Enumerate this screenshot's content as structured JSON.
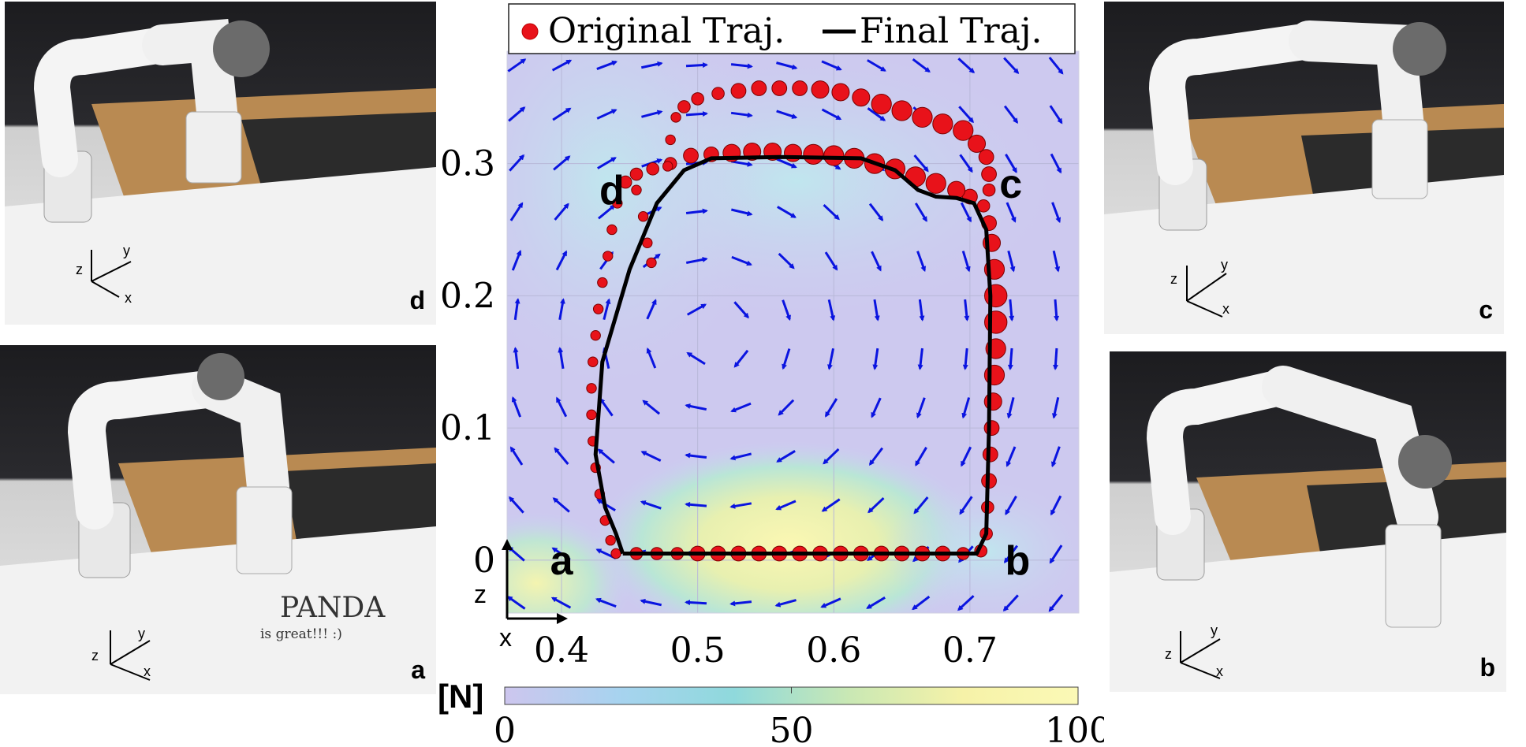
{
  "panels": [
    {
      "id": "d",
      "label": "d"
    },
    {
      "id": "a",
      "label": "a",
      "writing": "PANDA",
      "writing2": "is great!!! :)"
    },
    {
      "id": "c",
      "label": "c"
    },
    {
      "id": "b",
      "label": "b"
    }
  ],
  "axes_triad": {
    "x": "x",
    "y": "y",
    "z": "z"
  },
  "chart_data": {
    "type": "scatter",
    "xlim": [
      0.36,
      0.78
    ],
    "ylim": [
      -0.04,
      0.385
    ],
    "xticks": [
      {
        "value": 0.4,
        "label": "0.4"
      },
      {
        "value": 0.5,
        "label": "0.5"
      },
      {
        "value": 0.6,
        "label": "0.6"
      },
      {
        "value": 0.7,
        "label": "0.7"
      }
    ],
    "yticks": [
      {
        "value": 0.0,
        "label": "0"
      },
      {
        "value": 0.1,
        "label": "0.1"
      },
      {
        "value": 0.2,
        "label": "0.2"
      },
      {
        "value": 0.3,
        "label": "0.3"
      }
    ],
    "grid": true,
    "legend": {
      "position": "top",
      "entries": [
        {
          "label": "Original Traj.",
          "marker": "circle",
          "color": "#e8121a"
        },
        {
          "label": "Final Traj.",
          "marker": "line",
          "color": "#000000"
        }
      ]
    },
    "axis_indicator": {
      "vertical": "z",
      "horizontal": "x"
    },
    "point_labels": [
      {
        "text": "a",
        "x": 0.4,
        "y": 0.0
      },
      {
        "text": "b",
        "x": 0.735,
        "y": 0.0
      },
      {
        "text": "c",
        "x": 0.73,
        "y": 0.285
      },
      {
        "text": "d",
        "x": 0.437,
        "y": 0.28
      }
    ],
    "colorbar": {
      "label": "[N]",
      "min": 0,
      "max": 100,
      "ticks": [
        {
          "value": 0,
          "label": "0"
        },
        {
          "value": 50,
          "label": "50"
        },
        {
          "value": 100,
          "label": "100"
        }
      ],
      "colors": [
        "#cdc6ee",
        "#a7d3ef",
        "#8fd9dc",
        "#c9e8b4",
        "#f6f2a8",
        "#fbf9b6"
      ]
    },
    "field_color": "#0a14e0",
    "series": [
      {
        "name": "Original Traj.",
        "style": "points",
        "color": "#e8121a",
        "points": [
          [
            0.44,
            0.005,
            2
          ],
          [
            0.455,
            0.005,
            3
          ],
          [
            0.47,
            0.005,
            3
          ],
          [
            0.485,
            0.005,
            3
          ],
          [
            0.5,
            0.005,
            4
          ],
          [
            0.515,
            0.005,
            4
          ],
          [
            0.53,
            0.005,
            4
          ],
          [
            0.545,
            0.005,
            4
          ],
          [
            0.56,
            0.005,
            4
          ],
          [
            0.575,
            0.005,
            4
          ],
          [
            0.59,
            0.005,
            4
          ],
          [
            0.605,
            0.005,
            4
          ],
          [
            0.62,
            0.005,
            4
          ],
          [
            0.635,
            0.005,
            4
          ],
          [
            0.65,
            0.005,
            4
          ],
          [
            0.665,
            0.005,
            4
          ],
          [
            0.68,
            0.005,
            4
          ],
          [
            0.695,
            0.005,
            3
          ],
          [
            0.708,
            0.007,
            3
          ],
          [
            0.712,
            0.02,
            3
          ],
          [
            0.713,
            0.04,
            3
          ],
          [
            0.714,
            0.06,
            4
          ],
          [
            0.715,
            0.08,
            4
          ],
          [
            0.716,
            0.1,
            4
          ],
          [
            0.717,
            0.12,
            5
          ],
          [
            0.718,
            0.14,
            6
          ],
          [
            0.719,
            0.16,
            6
          ],
          [
            0.719,
            0.18,
            7
          ],
          [
            0.719,
            0.2,
            7
          ],
          [
            0.718,
            0.22,
            6
          ],
          [
            0.716,
            0.24,
            5
          ],
          [
            0.714,
            0.255,
            4
          ],
          [
            0.71,
            0.268,
            3
          ],
          [
            0.7,
            0.275,
            4
          ],
          [
            0.69,
            0.28,
            5
          ],
          [
            0.675,
            0.285,
            6
          ],
          [
            0.66,
            0.29,
            6
          ],
          [
            0.645,
            0.296,
            6
          ],
          [
            0.63,
            0.3,
            6
          ],
          [
            0.615,
            0.304,
            6
          ],
          [
            0.6,
            0.306,
            6
          ],
          [
            0.585,
            0.307,
            6
          ],
          [
            0.57,
            0.308,
            5
          ],
          [
            0.555,
            0.309,
            5
          ],
          [
            0.54,
            0.309,
            5
          ],
          [
            0.525,
            0.308,
            5
          ],
          [
            0.51,
            0.307,
            4
          ],
          [
            0.495,
            0.306,
            4
          ],
          [
            0.48,
            0.3,
            3
          ],
          [
            0.467,
            0.296,
            3
          ],
          [
            0.455,
            0.292,
            3
          ],
          [
            0.447,
            0.286,
            3
          ],
          [
            0.441,
            0.27,
            2
          ],
          [
            0.437,
            0.25,
            2
          ],
          [
            0.434,
            0.23,
            2
          ],
          [
            0.43,
            0.21,
            2
          ],
          [
            0.427,
            0.19,
            2
          ],
          [
            0.425,
            0.17,
            2
          ],
          [
            0.423,
            0.15,
            2
          ],
          [
            0.422,
            0.13,
            2
          ],
          [
            0.422,
            0.11,
            2
          ],
          [
            0.423,
            0.09,
            2
          ],
          [
            0.425,
            0.07,
            2
          ],
          [
            0.428,
            0.05,
            2
          ],
          [
            0.432,
            0.03,
            2
          ],
          [
            0.436,
            0.015,
            2
          ],
          [
            0.478,
            0.298,
            2
          ],
          [
            0.48,
            0.318,
            2
          ],
          [
            0.484,
            0.335,
            2
          ],
          [
            0.49,
            0.343,
            3
          ],
          [
            0.5,
            0.349,
            3
          ],
          [
            0.515,
            0.353,
            3
          ],
          [
            0.53,
            0.355,
            4
          ],
          [
            0.545,
            0.357,
            4
          ],
          [
            0.56,
            0.357,
            4
          ],
          [
            0.575,
            0.357,
            4
          ],
          [
            0.59,
            0.356,
            5
          ],
          [
            0.605,
            0.354,
            5
          ],
          [
            0.62,
            0.35,
            5
          ],
          [
            0.635,
            0.345,
            6
          ],
          [
            0.65,
            0.34,
            6
          ],
          [
            0.665,
            0.335,
            6
          ],
          [
            0.68,
            0.33,
            6
          ],
          [
            0.695,
            0.325,
            6
          ],
          [
            0.705,
            0.315,
            5
          ],
          [
            0.712,
            0.305,
            4
          ],
          [
            0.714,
            0.292,
            4
          ],
          [
            0.714,
            0.28,
            3
          ],
          [
            0.455,
            0.28,
            2
          ],
          [
            0.46,
            0.26,
            2
          ],
          [
            0.463,
            0.24,
            2
          ],
          [
            0.466,
            0.225,
            2
          ]
        ]
      },
      {
        "name": "Final Traj.",
        "style": "line",
        "color": "#000000",
        "points": [
          [
            0.445,
            0.005
          ],
          [
            0.6,
            0.005
          ],
          [
            0.705,
            0.005
          ],
          [
            0.712,
            0.02
          ],
          [
            0.714,
            0.1
          ],
          [
            0.715,
            0.2
          ],
          [
            0.712,
            0.25
          ],
          [
            0.703,
            0.27
          ],
          [
            0.69,
            0.274
          ],
          [
            0.675,
            0.275
          ],
          [
            0.662,
            0.28
          ],
          [
            0.645,
            0.295
          ],
          [
            0.62,
            0.304
          ],
          [
            0.56,
            0.305
          ],
          [
            0.51,
            0.304
          ],
          [
            0.49,
            0.295
          ],
          [
            0.47,
            0.27
          ],
          [
            0.45,
            0.22
          ],
          [
            0.43,
            0.15
          ],
          [
            0.425,
            0.08
          ],
          [
            0.432,
            0.04
          ],
          [
            0.44,
            0.02
          ],
          [
            0.445,
            0.005
          ]
        ]
      }
    ]
  }
}
